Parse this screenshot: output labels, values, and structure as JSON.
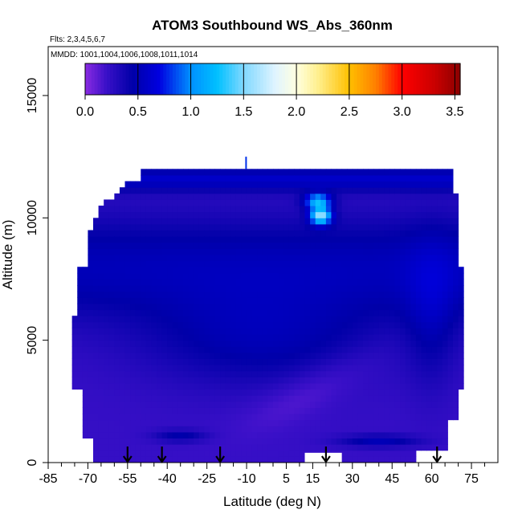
{
  "chart_data": {
    "type": "heatmap",
    "title": "ATOM3 Southbound WS_Abs_360nm",
    "flights_note": "Flts: 2,3,4,5,6,7",
    "dates_note": "MMDD: 1001,1004,1006,1008,1011,1014",
    "xlabel": "Latitude (deg N)",
    "ylabel": "Altitude (m)",
    "xlim": [
      -85,
      85
    ],
    "ylim": [
      0,
      17000
    ],
    "x_tick_labels": [
      "-85",
      "-70",
      "-55",
      "-40",
      "-25",
      "-10",
      "5",
      "15",
      "30",
      "45",
      "60",
      "75"
    ],
    "x_ticks": [
      -85,
      -70,
      -55,
      -40,
      -25,
      -10,
      5,
      15,
      30,
      45,
      60,
      75
    ],
    "y_ticks": [
      0,
      5000,
      10000,
      15000
    ],
    "y_tick_labels": [
      "0",
      "5000",
      "10000",
      "15000"
    ],
    "colorbar": {
      "range": [
        0,
        3.55
      ],
      "tick_values": [
        0,
        0.5,
        1,
        1.5,
        2,
        2.5,
        3,
        3.5
      ],
      "tick_labels": [
        "0.0",
        "0.5",
        "1.0",
        "1.5",
        "2.0",
        "2.5",
        "3.0",
        "3.5"
      ],
      "stops": [
        {
          "v": 0.0,
          "c": "#8a2be2"
        },
        {
          "v": 0.2,
          "c": "#3a10c8"
        },
        {
          "v": 0.45,
          "c": "#0000a8"
        },
        {
          "v": 0.7,
          "c": "#0000e0"
        },
        {
          "v": 1.0,
          "c": "#0090ff"
        },
        {
          "v": 1.25,
          "c": "#00c0ff"
        },
        {
          "v": 1.5,
          "c": "#80d8ff"
        },
        {
          "v": 1.8,
          "c": "#e0f4ff"
        },
        {
          "v": 2.0,
          "c": "#ffffe0"
        },
        {
          "v": 2.2,
          "c": "#fff090"
        },
        {
          "v": 2.5,
          "c": "#ffc000"
        },
        {
          "v": 2.75,
          "c": "#ff8000"
        },
        {
          "v": 3.0,
          "c": "#ff0000"
        },
        {
          "v": 3.3,
          "c": "#cc0000"
        },
        {
          "v": 3.55,
          "c": "#8b0000"
        }
      ]
    },
    "profile_markers_lat": [
      -55,
      -42,
      -20,
      20,
      62
    ],
    "curtain_extent": {
      "lat_range": [
        -72,
        72
      ],
      "alt_range": [
        0,
        12000
      ]
    },
    "grid": false,
    "legend": "colorbar top inside plot"
  }
}
